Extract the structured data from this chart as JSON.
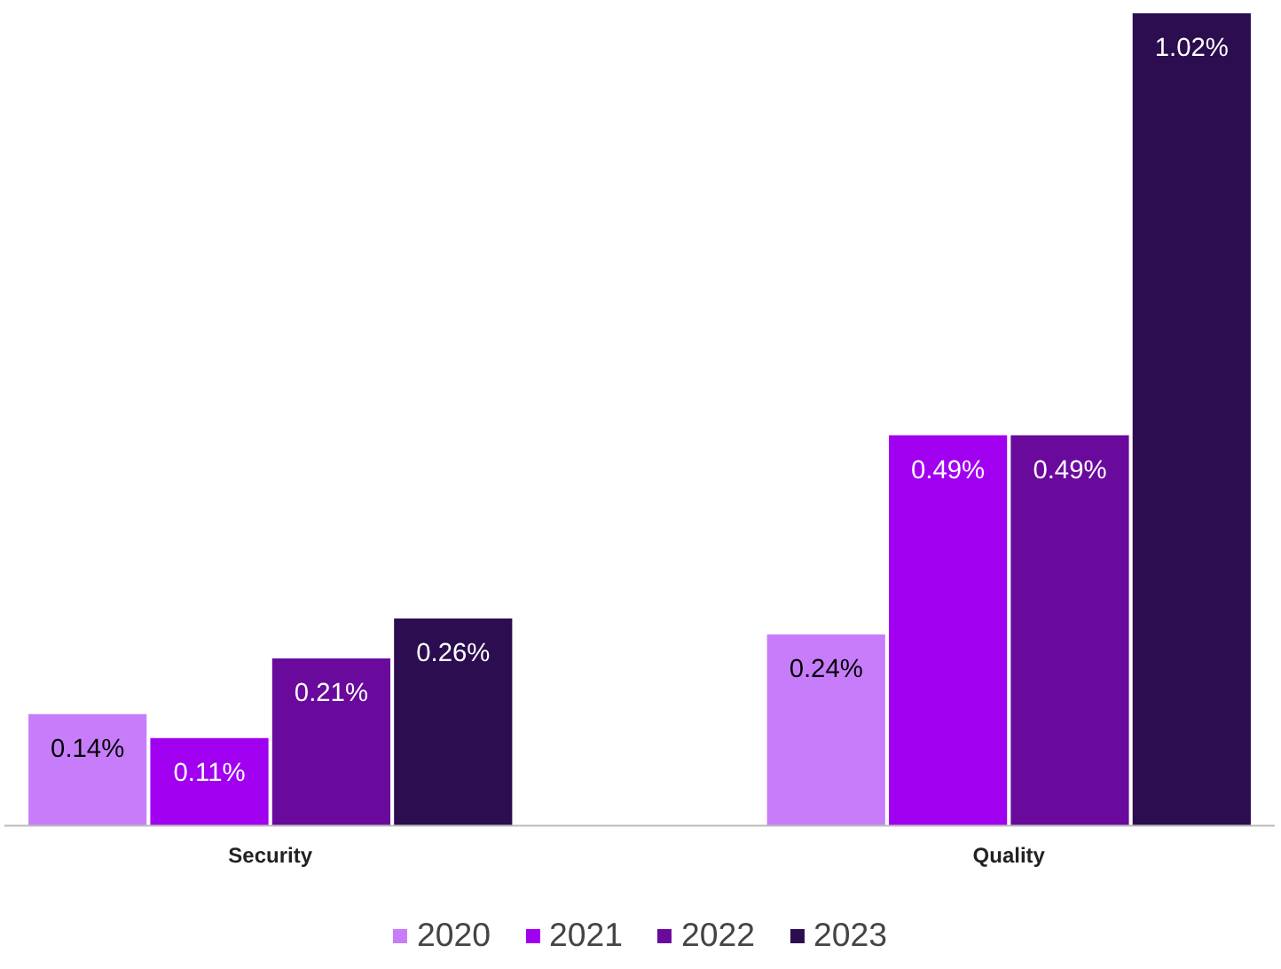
{
  "chart_data": {
    "type": "bar",
    "categories": [
      "Security",
      "Quality"
    ],
    "legend": "bottom",
    "series": [
      {
        "name": "2020",
        "color": "#c77dfa",
        "values": [
          0.14,
          0.24
        ],
        "value_labels": [
          "0.14%",
          "0.24%"
        ]
      },
      {
        "name": "2021",
        "color": "#a100f0",
        "values": [
          0.11,
          0.49
        ],
        "value_labels": [
          "0.11%",
          "0.49%"
        ]
      },
      {
        "name": "2022",
        "color": "#6a0a9c",
        "values": [
          0.21,
          0.49
        ],
        "value_labels": [
          "0.21%",
          "0.49%"
        ]
      },
      {
        "name": "2023",
        "color": "#2c0d50",
        "values": [
          0.26,
          1.02
        ],
        "value_labels": [
          "0.26%",
          "1.02%"
        ]
      }
    ]
  }
}
